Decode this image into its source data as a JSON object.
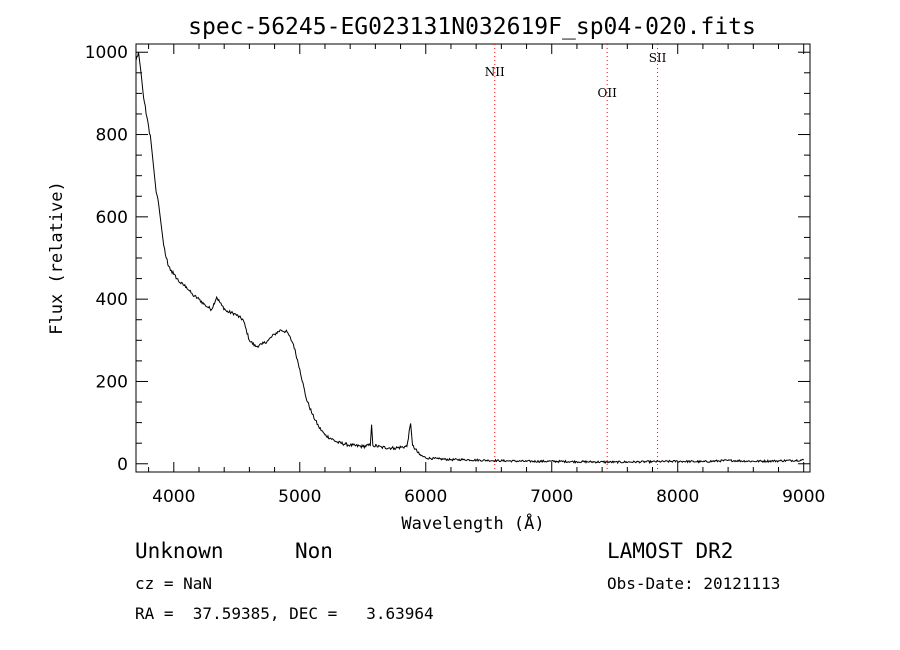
{
  "chart_data": {
    "type": "line",
    "title": "spec-56245-EG023131N032619F_sp04-020.fits",
    "xlabel": "Wavelength (Å)",
    "ylabel": "Flux (relative)",
    "xlim": [
      3700,
      9050
    ],
    "ylim": [
      -20,
      1020
    ],
    "x_ticks": [
      4000,
      5000,
      6000,
      7000,
      8000,
      9000
    ],
    "y_ticks": [
      0,
      200,
      400,
      600,
      800,
      1000
    ],
    "grid": false,
    "series": [
      {
        "color": "#000000",
        "points": [
          [
            3700,
            980
          ],
          [
            3720,
            1000
          ],
          [
            3740,
            950
          ],
          [
            3760,
            890
          ],
          [
            3780,
            850
          ],
          [
            3800,
            820
          ],
          [
            3820,
            780
          ],
          [
            3840,
            720
          ],
          [
            3860,
            660
          ],
          [
            3880,
            630
          ],
          [
            3900,
            580
          ],
          [
            3920,
            530
          ],
          [
            3940,
            500
          ],
          [
            3960,
            480
          ],
          [
            3980,
            470
          ],
          [
            4000,
            460
          ],
          [
            4050,
            440
          ],
          [
            4100,
            430
          ],
          [
            4150,
            410
          ],
          [
            4200,
            400
          ],
          [
            4250,
            385
          ],
          [
            4300,
            375
          ],
          [
            4340,
            405
          ],
          [
            4380,
            385
          ],
          [
            4420,
            370
          ],
          [
            4480,
            365
          ],
          [
            4550,
            350
          ],
          [
            4600,
            300
          ],
          [
            4650,
            285
          ],
          [
            4700,
            290
          ],
          [
            4750,
            300
          ],
          [
            4800,
            315
          ],
          [
            4850,
            325
          ],
          [
            4900,
            320
          ],
          [
            4950,
            290
          ],
          [
            5000,
            230
          ],
          [
            5050,
            160
          ],
          [
            5100,
            120
          ],
          [
            5150,
            90
          ],
          [
            5200,
            70
          ],
          [
            5300,
            52
          ],
          [
            5400,
            45
          ],
          [
            5500,
            42
          ],
          [
            5560,
            45
          ],
          [
            5570,
            95
          ],
          [
            5580,
            45
          ],
          [
            5650,
            40
          ],
          [
            5750,
            38
          ],
          [
            5850,
            42
          ],
          [
            5880,
            98
          ],
          [
            5895,
            45
          ],
          [
            5950,
            22
          ],
          [
            6000,
            14
          ],
          [
            6100,
            12
          ],
          [
            6200,
            10
          ],
          [
            6300,
            10
          ],
          [
            6500,
            8
          ],
          [
            6800,
            6
          ],
          [
            7000,
            6
          ],
          [
            7200,
            5
          ],
          [
            7500,
            4
          ],
          [
            7800,
            5
          ],
          [
            8000,
            6
          ],
          [
            8200,
            5
          ],
          [
            8400,
            8
          ],
          [
            8600,
            6
          ],
          [
            8800,
            7
          ],
          [
            9000,
            9
          ]
        ]
      }
    ],
    "reference_lines": [
      {
        "label": "NII",
        "x": 6548,
        "color": "#ff0000"
      },
      {
        "label": "OII",
        "x": 7440,
        "color": "#ff0000"
      },
      {
        "label": "SII",
        "x": 7840,
        "color": "#ff0000"
      }
    ]
  },
  "info": {
    "class": "Unknown",
    "subclass": "Non",
    "survey": "LAMOST DR2",
    "cz": "cz = NaN",
    "obs_date": "Obs-Date: 20121113",
    "coords": "RA =  37.59385, DEC =   3.63964"
  }
}
